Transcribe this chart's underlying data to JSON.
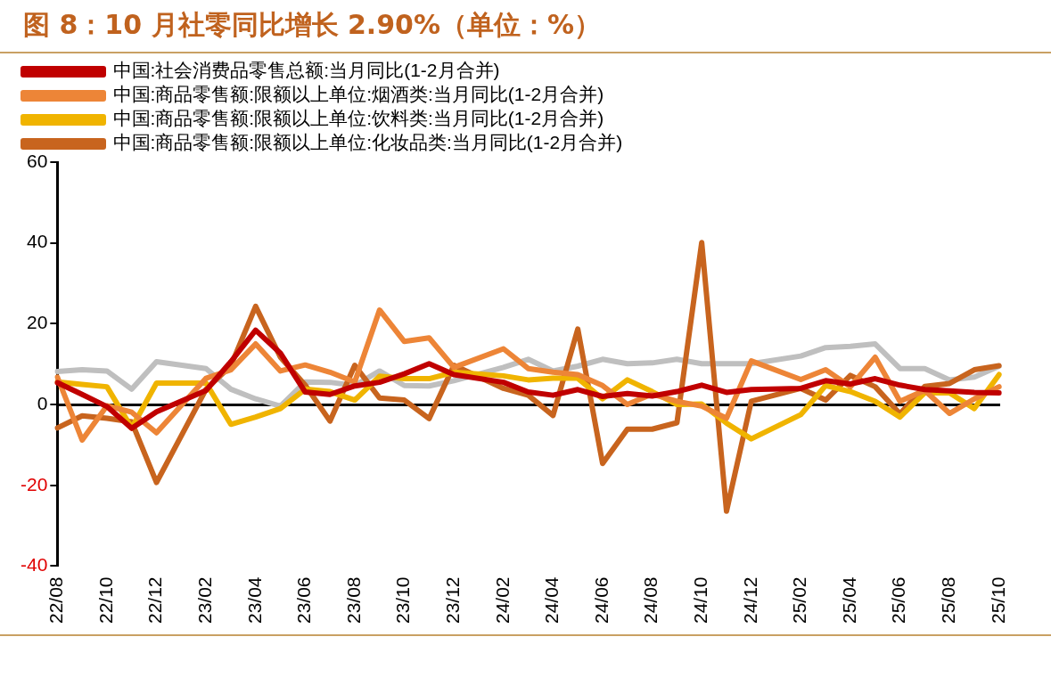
{
  "chart_data": {
    "type": "line",
    "title": "图 8：10 月社零同比增长 2.90%（单位：%）",
    "categories": [
      "22/08",
      null,
      "22/10",
      null,
      "22/12",
      null,
      "23/02",
      null,
      "23/04",
      null,
      "23/06",
      null,
      "23/08",
      null,
      "23/10",
      null,
      "23/12",
      null,
      "24/02",
      null,
      "24/04",
      null,
      "24/06",
      null,
      "24/08",
      null,
      "24/10",
      null,
      "24/12",
      null,
      "25/02",
      null,
      "25/04",
      null,
      "25/06",
      null,
      "25/08",
      null,
      "25/10"
    ],
    "series": [
      {
        "name": "中国:社会消费品零售总额:当月同比(1-2月合并)",
        "color": "#c00000",
        "values": [
          5.4,
          2.5,
          -0.5,
          -5.9,
          -1.8,
          null,
          3.5,
          10.6,
          18.4,
          12.7,
          3.1,
          2.5,
          4.6,
          5.5,
          7.6,
          10.1,
          7.4,
          null,
          5.5,
          3.1,
          2.3,
          3.7,
          2.0,
          2.7,
          2.1,
          3.2,
          4.8,
          3.0,
          3.7,
          null,
          4.0,
          5.9,
          5.1,
          6.4,
          4.8,
          3.7,
          3.4,
          3.0,
          2.9
        ]
      },
      {
        "name": "中国:商品零售额:限额以上单位:烟酒类:当月同比(1-2月合并)",
        "color": "#ed8537",
        "values": [
          6.8,
          -8.8,
          -0.3,
          -1.9,
          -7.0,
          null,
          6.5,
          8.6,
          15.0,
          8.3,
          9.8,
          8.0,
          5.6,
          23.4,
          15.6,
          16.5,
          9.2,
          null,
          13.8,
          8.9,
          8.0,
          7.4,
          4.7,
          0.0,
          2.6,
          0.8,
          -0.4,
          -3.4,
          10.8,
          null,
          6.2,
          8.6,
          4.4,
          11.7,
          0.8,
          3.5,
          -2.2,
          1.4,
          4.4
        ]
      },
      {
        "name": "中国:商品零售额:限额以上单位:饮料类:当月同比(1-2月合并)",
        "color": "#f0b400",
        "values": [
          5.6,
          5.0,
          4.4,
          -5.8,
          5.3,
          null,
          5.3,
          -4.9,
          -3.1,
          -1.0,
          3.8,
          3.2,
          1.1,
          7.0,
          6.4,
          6.4,
          8.0,
          null,
          7.1,
          6.1,
          6.5,
          6.5,
          1.4,
          6.1,
          3.2,
          0.0,
          0.1,
          -4.6,
          -8.5,
          null,
          -2.5,
          4.7,
          3.2,
          0.8,
          -3.1,
          2.9,
          2.9,
          -1.0,
          7.4
        ]
      },
      {
        "name": "中国:商品零售额:限额以上单位:化妆品类:当月同比(1-2月合并)",
        "color": "#c8641e",
        "values": [
          -5.8,
          -2.8,
          -3.4,
          -4.3,
          -19.3,
          null,
          3.8,
          9.6,
          24.3,
          11.7,
          4.8,
          -4.1,
          9.7,
          1.6,
          1.1,
          -3.5,
          9.7,
          null,
          4.0,
          2.3,
          -2.7,
          18.7,
          -14.6,
          -6.1,
          -6.1,
          -4.5,
          40.1,
          -26.4,
          0.8,
          null,
          4.0,
          1.1,
          7.2,
          4.4,
          -2.3,
          4.5,
          5.2,
          8.6,
          9.6
        ]
      },
      {
        "color": "#bfbfbf",
        "values": [
          8.2,
          8.6,
          8.3,
          3.8,
          10.6,
          null,
          8.9,
          3.8,
          1.4,
          -0.4,
          5.6,
          5.5,
          4.7,
          8.3,
          4.7,
          4.6,
          5.9,
          null,
          9.2,
          11.2,
          8.3,
          9.5,
          11.2,
          10.1,
          10.3,
          11.2,
          10.1,
          10.1,
          10.1,
          null,
          12.0,
          14.1,
          14.4,
          15.0,
          8.9,
          8.9,
          6.1,
          6.8,
          9.5
        ]
      }
    ],
    "ylim": [
      -40,
      60
    ],
    "yticks": [
      -40,
      -20,
      0,
      20,
      40,
      60
    ],
    "legend": "top left",
    "marker": "none",
    "line_style": "solid"
  }
}
